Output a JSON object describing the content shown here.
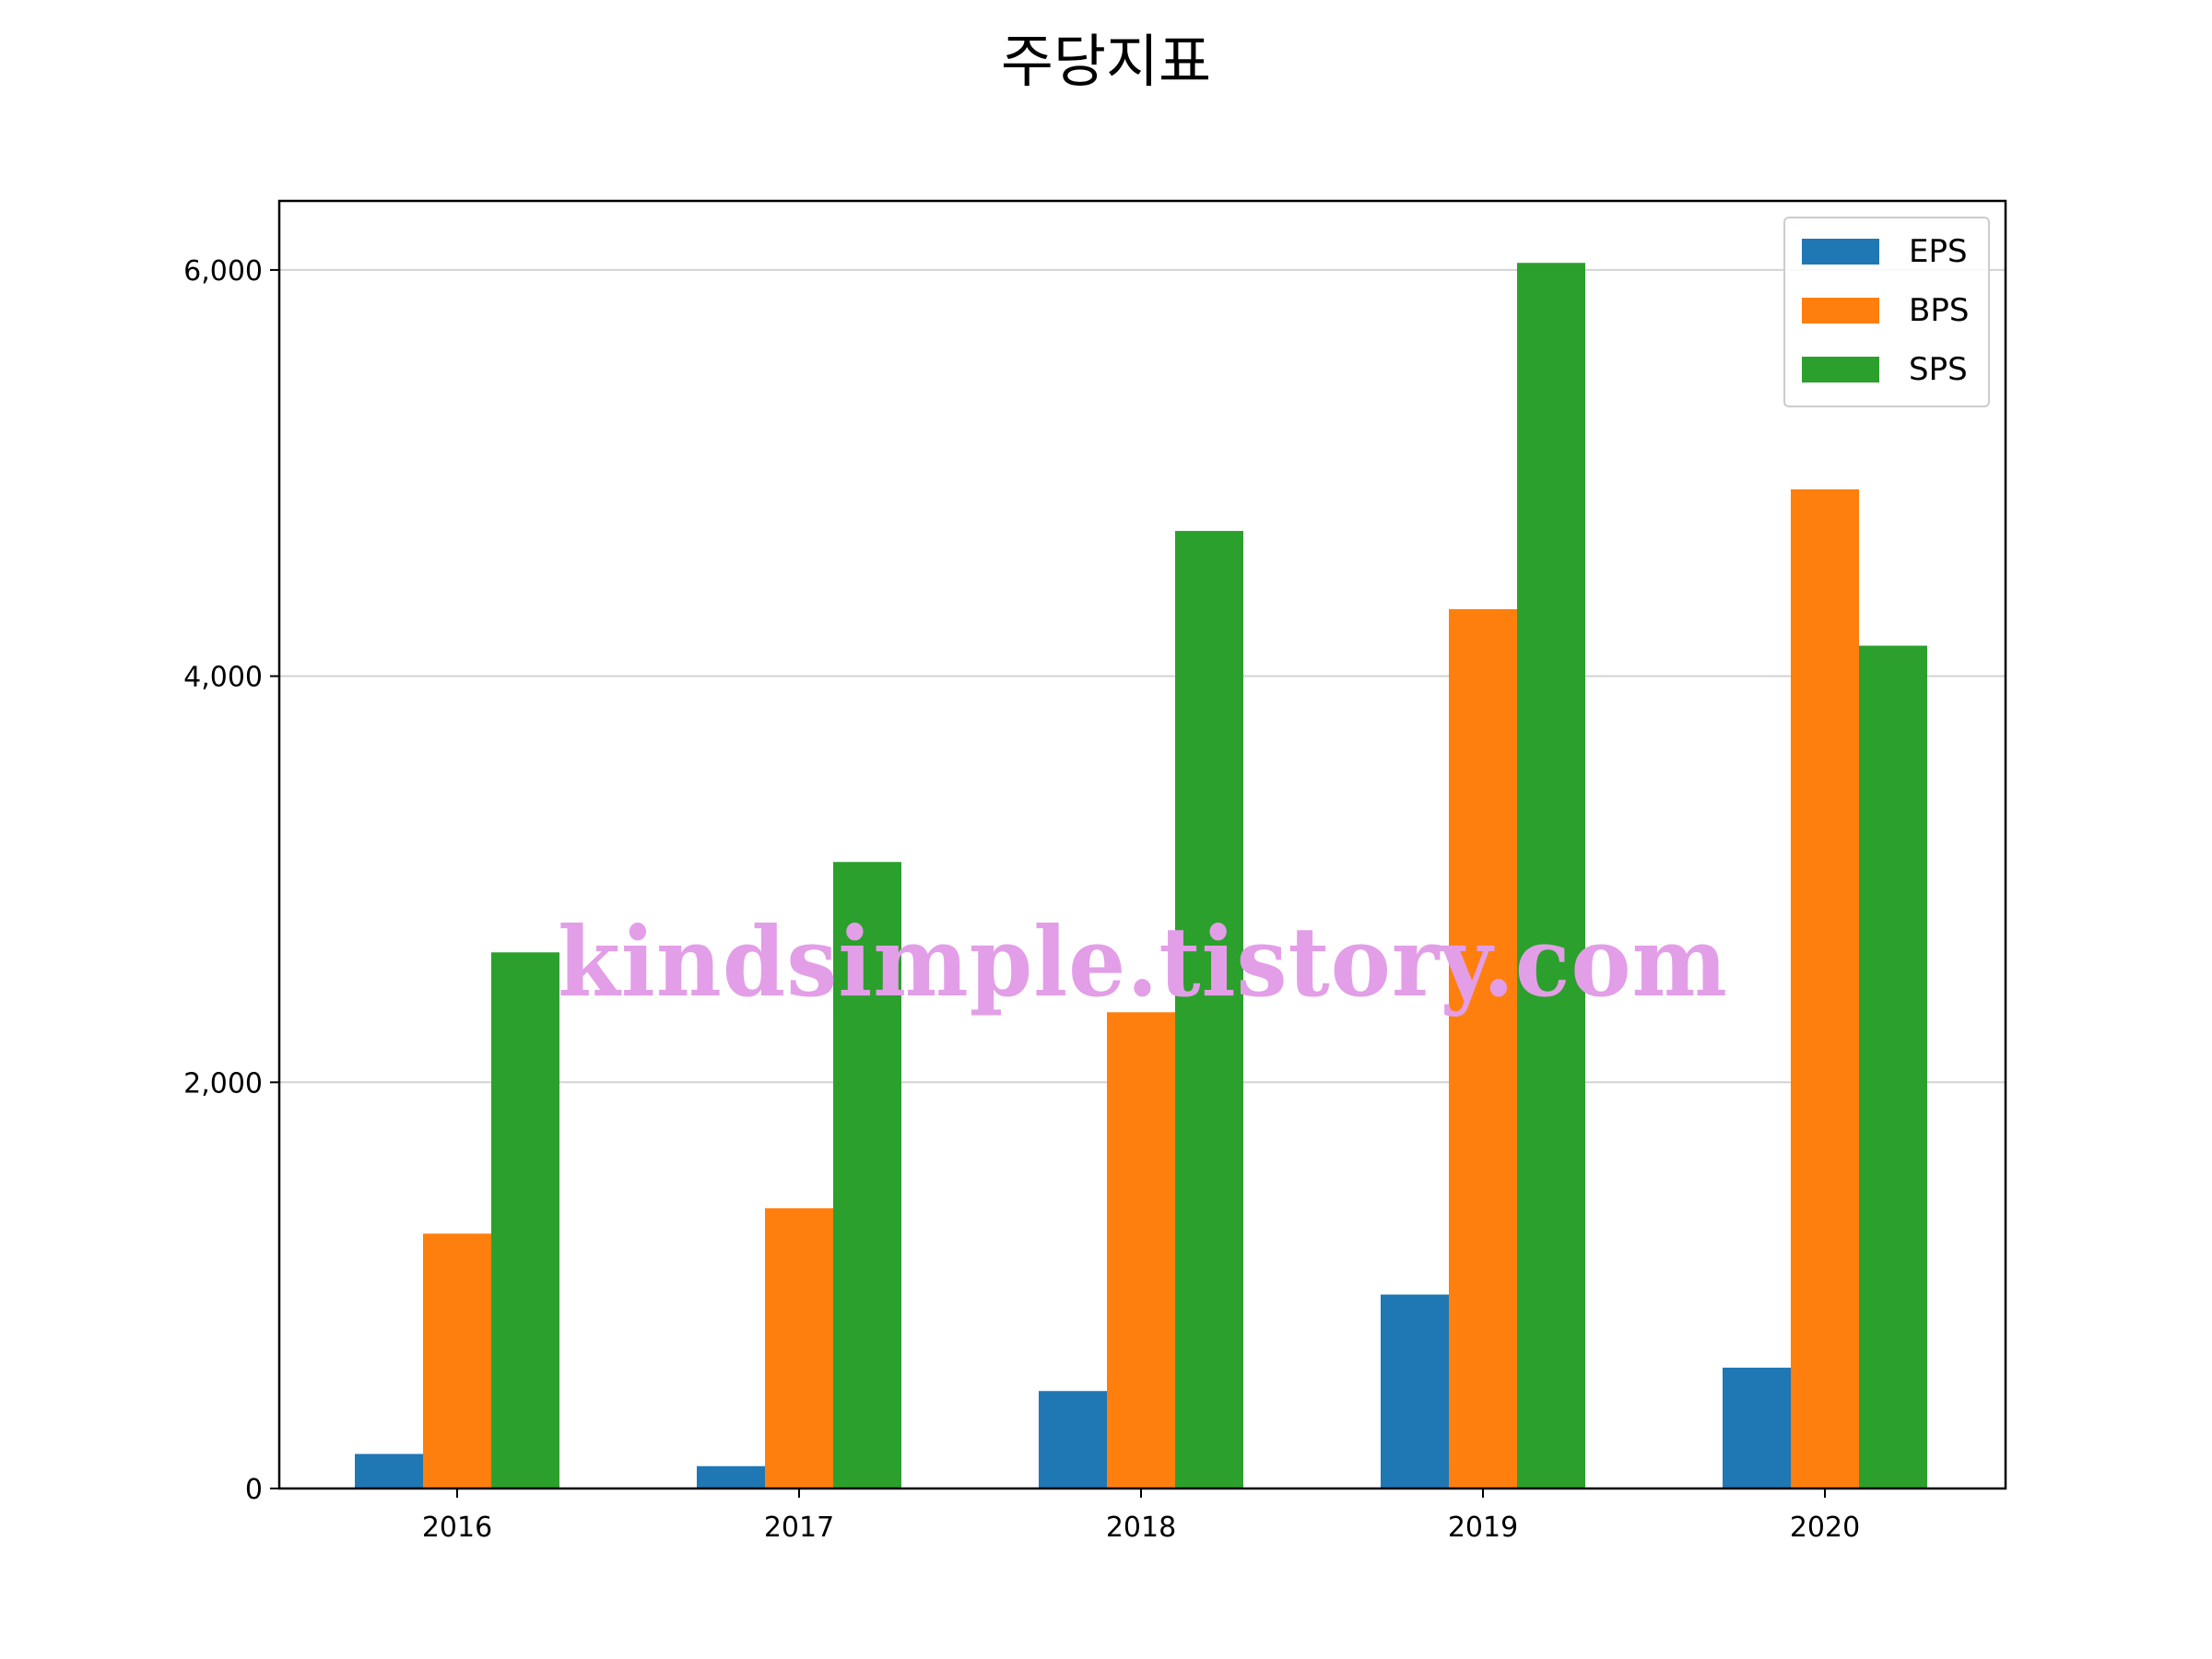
{
  "chart_data": {
    "type": "bar",
    "title": "주당지표",
    "categories": [
      "2016",
      "2017",
      "2018",
      "2019",
      "2020"
    ],
    "series": [
      {
        "name": "EPS",
        "color": "#1f77b4",
        "values": [
          170,
          110,
          480,
          955,
          595
        ]
      },
      {
        "name": "BPS",
        "color": "#ff7f0e",
        "values": [
          1255,
          1380,
          2345,
          4330,
          4920
        ]
      },
      {
        "name": "SPS",
        "color": "#2ca02c",
        "values": [
          2640,
          3085,
          4715,
          6035,
          4150
        ]
      }
    ],
    "ylim": [
      0,
      6340
    ],
    "yticks": [
      0,
      2000,
      4000,
      6000
    ],
    "ytick_labels": [
      "0",
      "2,000",
      "4,000",
      "6,000"
    ],
    "grid": "horizontal",
    "legend_position": "top-right",
    "watermark": "kindsimple.tistory.com"
  }
}
